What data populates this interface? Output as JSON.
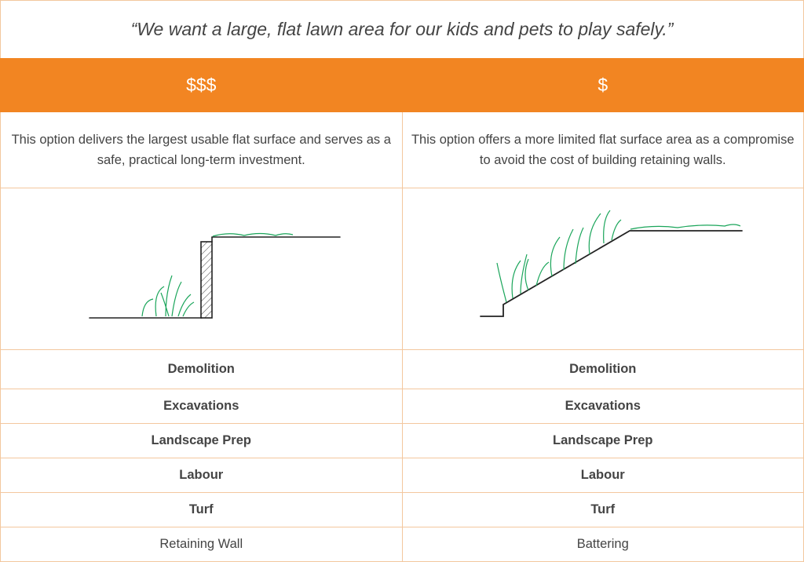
{
  "header": {
    "quote": "“We want a large, flat lawn area for our kids and pets to play safely.”"
  },
  "table": {
    "price_levels": [
      "$$$",
      "$"
    ],
    "descriptions": [
      "This option delivers the largest usable flat surface and serves as a safe, practical long-term investment.",
      "This option offers a more limited flat surface area as a compromise to avoid the cost of building retaining walls."
    ],
    "rows": [
      [
        "Demolition",
        "Demolition"
      ],
      [
        "Excavations",
        "Excavations"
      ],
      [
        "Landscape Prep",
        "Landscape Prep"
      ],
      [
        "Labour",
        "Labour"
      ],
      [
        "Turf",
        "Turf"
      ],
      [
        "Retaining Wall",
        "Battering"
      ]
    ]
  }
}
